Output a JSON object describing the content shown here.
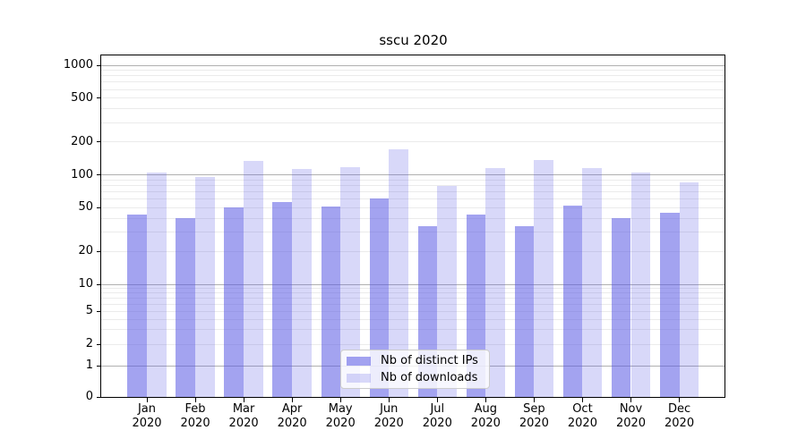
{
  "chart_data": {
    "type": "bar",
    "title": "sscu 2020",
    "categories": [
      "Jan",
      "Feb",
      "Mar",
      "Apr",
      "May",
      "Jun",
      "Jul",
      "Aug",
      "Sep",
      "Oct",
      "Nov",
      "Dec"
    ],
    "category_year": "2020",
    "series": [
      {
        "name": "Nb of distinct IPs",
        "values": [
          43,
          40,
          50,
          56,
          51,
          61,
          34,
          43,
          34,
          52,
          40,
          45
        ],
        "color": "rgba(88,88,228,0.55)"
      },
      {
        "name": "Nb of downloads",
        "values": [
          105,
          95,
          135,
          112,
          117,
          170,
          79,
          115,
          137,
          115,
          104,
          86
        ],
        "color": "rgba(88,88,228,0.23)"
      }
    ],
    "xlabel": "",
    "ylabel": "",
    "yscale": "symlog",
    "y_ticks": [
      0,
      1,
      2,
      5,
      10,
      20,
      50,
      100,
      200,
      500,
      1000
    ],
    "ylim": [
      0,
      1500
    ],
    "grid": "horizontal major and minor gridlines",
    "legend_position": "lower center",
    "colors": {
      "major_grid": "#b0b0b0",
      "minor_grid": "#ebebeb",
      "axis": "#000000",
      "background": "#ffffff"
    }
  }
}
